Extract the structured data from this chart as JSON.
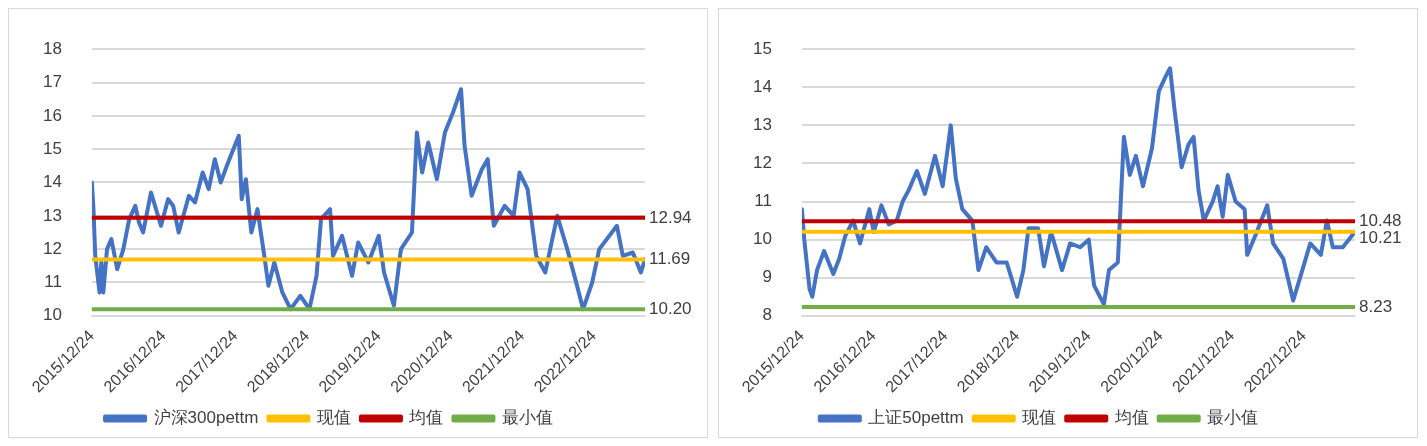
{
  "chart_data": [
    {
      "type": "line",
      "marker": "none",
      "grid": "y",
      "legend": "bottom",
      "xlim": [
        "2015-12-24",
        "2023-09-10"
      ],
      "xticks": [
        {
          "value": "2015-12-24",
          "label": "2015/12/24"
        },
        {
          "value": "2016-12-24",
          "label": "2016/12/24"
        },
        {
          "value": "2017-12-24",
          "label": "2017/12/24"
        },
        {
          "value": "2018-12-24",
          "label": "2018/12/24"
        },
        {
          "value": "2019-12-24",
          "label": "2019/12/24"
        },
        {
          "value": "2020-12-24",
          "label": "2020/12/24"
        },
        {
          "value": "2021-12-24",
          "label": "2021/12/24"
        },
        {
          "value": "2022-12-24",
          "label": "2022/12/24"
        }
      ],
      "ylim": [
        10,
        18
      ],
      "yticks": [
        10,
        11,
        12,
        13,
        14,
        15,
        16,
        17,
        18
      ],
      "series": [
        {
          "name": "沪深300pettm",
          "color": "#4472c4",
          "x": [
            "2015-12-24",
            "2016-01-01",
            "2016-01-10",
            "2016-02-01",
            "2016-02-10",
            "2016-02-20",
            "2016-03-10",
            "2016-04-01",
            "2016-05-01",
            "2016-06-01",
            "2016-07-01",
            "2016-08-01",
            "2016-08-20",
            "2016-09-10",
            "2016-10-20",
            "2016-12-10",
            "2017-01-15",
            "2017-02-10",
            "2017-03-10",
            "2017-05-01",
            "2017-06-01",
            "2017-07-10",
            "2017-08-10",
            "2017-09-10",
            "2017-10-10",
            "2017-11-10",
            "2018-01-10",
            "2018-01-25",
            "2018-02-15",
            "2018-03-15",
            "2018-04-15",
            "2018-05-20",
            "2018-06-10",
            "2018-07-10",
            "2018-08-20",
            "2018-10-01",
            "2018-11-20",
            "2019-01-05",
            "2019-02-10",
            "2019-03-05",
            "2019-04-20",
            "2019-05-05",
            "2019-06-20",
            "2019-08-10",
            "2019-09-10",
            "2019-11-01",
            "2019-12-24",
            "2020-01-20",
            "2020-03-10",
            "2020-04-15",
            "2020-06-10",
            "2020-07-05",
            "2020-08-01",
            "2020-09-01",
            "2020-10-15",
            "2020-11-25",
            "2021-01-05",
            "2021-02-15",
            "2021-03-05",
            "2021-04-10",
            "2021-06-01",
            "2021-07-01",
            "2021-08-01",
            "2021-09-25",
            "2021-11-10",
            "2021-12-10",
            "2022-01-20",
            "2022-03-05",
            "2022-04-20",
            "2022-06-20",
            "2022-08-10",
            "2022-09-20",
            "2022-10-30",
            "2022-12-15",
            "2023-01-20",
            "2023-04-20",
            "2023-05-20",
            "2023-07-10",
            "2023-08-20",
            "2023-09-10"
          ],
          "values": [
            14.0,
            13.2,
            11.8,
            10.7,
            11.6,
            10.7,
            12.0,
            12.3,
            11.4,
            12.0,
            12.9,
            13.3,
            12.8,
            12.5,
            13.7,
            12.7,
            13.5,
            13.3,
            12.5,
            13.6,
            13.4,
            14.3,
            13.8,
            14.7,
            14.0,
            14.5,
            15.4,
            13.5,
            14.1,
            12.5,
            13.2,
            11.8,
            10.9,
            11.6,
            10.7,
            10.2,
            10.6,
            10.2,
            11.2,
            12.9,
            13.2,
            11.8,
            12.4,
            11.2,
            12.2,
            11.6,
            12.4,
            11.3,
            10.3,
            12.0,
            12.5,
            15.5,
            14.3,
            15.2,
            14.1,
            15.5,
            16.1,
            16.8,
            15.1,
            13.6,
            14.4,
            14.7,
            12.7,
            13.3,
            13.0,
            14.3,
            13.8,
            11.8,
            11.3,
            13.0,
            12.0,
            11.1,
            10.2,
            11.0,
            12.0,
            12.7,
            11.8,
            11.9,
            11.3,
            11.7
          ]
        },
        {
          "name": "现值",
          "color": "#ffc000",
          "x": [
            "2015-12-24",
            "2023-09-10"
          ],
          "values": [
            11.69,
            11.69
          ],
          "value_labels": [
            null,
            "11.69"
          ]
        },
        {
          "name": "均值",
          "color": "#c00000",
          "x": [
            "2015-12-24",
            "2023-09-10"
          ],
          "values": [
            12.94,
            12.94
          ],
          "value_labels": [
            null,
            "12.94"
          ]
        },
        {
          "name": "最小值",
          "color": "#70ad47",
          "x": [
            "2015-12-24",
            "2023-09-10"
          ],
          "values": [
            10.2,
            10.2
          ],
          "value_labels": [
            null,
            "10.20"
          ]
        }
      ]
    },
    {
      "type": "line",
      "marker": "none",
      "grid": "y",
      "legend": "bottom",
      "xlim": [
        "2015-12-24",
        "2023-09-10"
      ],
      "xticks": [
        {
          "value": "2015-12-24",
          "label": "2015/12/24"
        },
        {
          "value": "2016-12-24",
          "label": "2016/12/24"
        },
        {
          "value": "2017-12-24",
          "label": "2017/12/24"
        },
        {
          "value": "2018-12-24",
          "label": "2018/12/24"
        },
        {
          "value": "2019-12-24",
          "label": "2019/12/24"
        },
        {
          "value": "2020-12-24",
          "label": "2020/12/24"
        },
        {
          "value": "2021-12-24",
          "label": "2021/12/24"
        },
        {
          "value": "2022-12-24",
          "label": "2022/12/24"
        }
      ],
      "ylim": [
        8,
        15
      ],
      "yticks": [
        8,
        9,
        10,
        11,
        12,
        13,
        14,
        15
      ],
      "series": [
        {
          "name": "上证50pettm",
          "color": "#4472c4",
          "x": [
            "2015-12-24",
            "2016-01-05",
            "2016-02-01",
            "2016-02-15",
            "2016-03-10",
            "2016-04-15",
            "2016-06-01",
            "2016-07-01",
            "2016-08-01",
            "2016-09-10",
            "2016-10-15",
            "2016-12-01",
            "2016-12-24",
            "2017-02-01",
            "2017-03-10",
            "2017-04-20",
            "2017-05-20",
            "2017-06-20",
            "2017-08-01",
            "2017-09-10",
            "2017-11-01",
            "2017-12-10",
            "2018-01-20",
            "2018-02-15",
            "2018-03-20",
            "2018-05-10",
            "2018-06-10",
            "2018-07-20",
            "2018-09-10",
            "2018-11-01",
            "2018-12-24",
            "2019-01-25",
            "2019-02-20",
            "2019-04-10",
            "2019-05-10",
            "2019-06-15",
            "2019-08-10",
            "2019-09-20",
            "2019-11-10",
            "2019-12-24",
            "2020-01-20",
            "2020-03-10",
            "2020-04-05",
            "2020-05-20",
            "2020-06-20",
            "2020-07-20",
            "2020-08-20",
            "2020-09-25",
            "2020-11-10",
            "2020-12-15",
            "2021-01-20",
            "2021-02-10",
            "2021-03-05",
            "2021-04-10",
            "2021-05-15",
            "2021-06-10",
            "2021-07-05",
            "2021-08-01",
            "2021-09-15",
            "2021-10-10",
            "2021-11-05",
            "2021-12-01",
            "2022-01-10",
            "2022-02-25",
            "2022-03-10",
            "2022-04-20",
            "2022-06-20",
            "2022-07-20",
            "2022-09-10",
            "2022-10-30",
            "2022-12-10",
            "2023-01-25",
            "2023-03-20",
            "2023-04-20",
            "2023-05-20",
            "2023-07-10",
            "2023-09-10"
          ],
          "values": [
            10.8,
            10.0,
            8.7,
            8.5,
            9.2,
            9.7,
            9.1,
            9.5,
            10.1,
            10.5,
            9.9,
            10.8,
            10.2,
            10.9,
            10.4,
            10.5,
            11.0,
            11.3,
            11.8,
            11.2,
            12.2,
            11.4,
            13.0,
            11.6,
            10.8,
            10.5,
            9.2,
            9.8,
            9.4,
            9.4,
            8.5,
            9.2,
            10.3,
            10.3,
            9.3,
            10.2,
            9.2,
            9.9,
            9.8,
            10.0,
            8.8,
            8.3,
            9.2,
            9.4,
            12.7,
            11.7,
            12.2,
            11.4,
            12.4,
            13.9,
            14.3,
            14.5,
            13.4,
            11.9,
            12.5,
            12.7,
            11.3,
            10.5,
            11.0,
            11.4,
            10.6,
            11.7,
            11.0,
            10.8,
            9.6,
            10.1,
            10.9,
            9.9,
            9.5,
            8.4,
            9.1,
            9.9,
            9.6,
            10.5,
            9.8,
            9.8,
            10.21
          ]
        },
        {
          "name": "现值",
          "color": "#ffc000",
          "x": [
            "2015-12-24",
            "2023-09-10"
          ],
          "values": [
            10.21,
            10.21
          ],
          "value_labels": [
            null,
            "10.21"
          ]
        },
        {
          "name": "均值",
          "color": "#c00000",
          "x": [
            "2015-12-24",
            "2023-09-10"
          ],
          "values": [
            10.48,
            10.48
          ],
          "value_labels": [
            null,
            "10.48"
          ]
        },
        {
          "name": "最小值",
          "color": "#70ad47",
          "x": [
            "2015-12-24",
            "2023-09-10"
          ],
          "values": [
            8.23,
            8.23
          ],
          "value_labels": [
            null,
            "8.23"
          ]
        }
      ]
    }
  ]
}
